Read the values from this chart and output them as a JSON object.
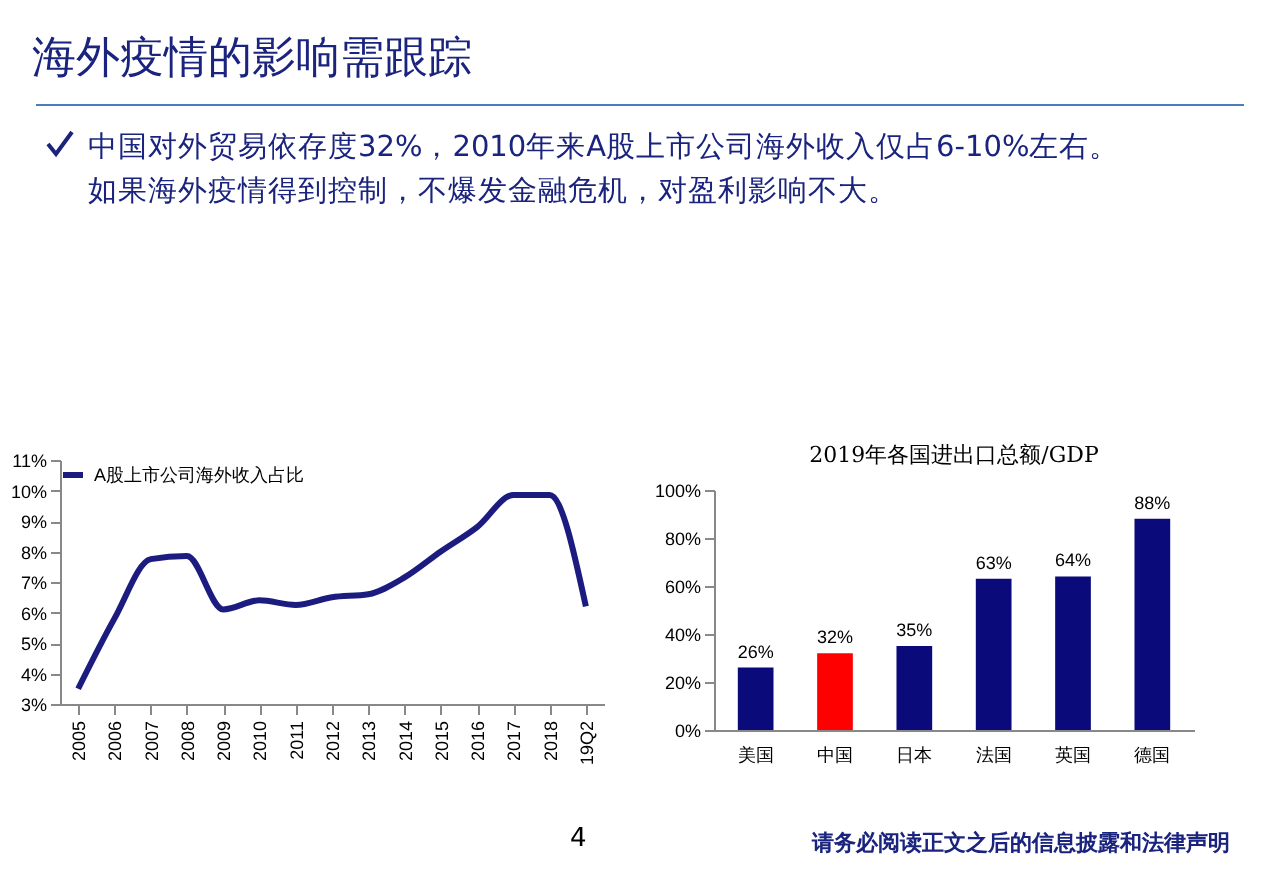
{
  "chart_data": [
    {
      "type": "other",
      "title": "海外疫情的影响需跟踪",
      "annotations": [
        "中国对外贸易依存度32%，2010年来A股上市公司海外收入仅占6-10%左右。",
        "如果海外疫情得到控制，不爆发金融危机，对盈利影响不大。",
        "4",
        "请务必阅读正文之后的信息披露和法律声明"
      ]
    },
    {
      "type": "line",
      "categories": [
        "2005",
        "2006",
        "2007",
        "2008",
        "2009",
        "2010",
        "2011",
        "2012",
        "2013",
        "2014",
        "2015",
        "2016",
        "2017",
        "2018",
        "19Q2"
      ],
      "series": [
        {
          "name": "A股上市公司海外收入占比",
          "color": "#1c1c80",
          "values": [
            3.5,
            5.8,
            7.75,
            7.85,
            6.1,
            6.4,
            6.25,
            6.5,
            6.6,
            7.15,
            8.0,
            8.8,
            9.85,
            9.85,
            6.2
          ]
        }
      ],
      "ylim": [
        3,
        11
      ],
      "yticks": [
        {
          "value": 3,
          "label": "3%"
        },
        {
          "value": 4,
          "label": "4%"
        },
        {
          "value": 5,
          "label": "5%"
        },
        {
          "value": 6,
          "label": "6%"
        },
        {
          "value": 7,
          "label": "7%"
        },
        {
          "value": 8,
          "label": "8%"
        },
        {
          "value": 9,
          "label": "9%"
        },
        {
          "value": 10,
          "label": "10%"
        },
        {
          "value": 11,
          "label": "11%"
        }
      ],
      "legend": "top",
      "grid": false
    },
    {
      "type": "bar",
      "title": "2019年各国进出口总额/GDP",
      "categories": [
        "美国",
        "中国",
        "日本",
        "法国",
        "英国",
        "德国"
      ],
      "values": [
        26,
        32,
        35,
        63,
        64,
        88
      ],
      "colors": [
        "#0a0a7a",
        "#ff0000",
        "#0a0a7a",
        "#0a0a7a",
        "#0a0a7a",
        "#0a0a7a"
      ],
      "value_labels": [
        "26%",
        "32%",
        "35%",
        "63%",
        "64%",
        "88%"
      ],
      "ylim": [
        0,
        100
      ],
      "yticks": [
        {
          "value": 0,
          "label": "0%"
        },
        {
          "value": 20,
          "label": "20%"
        },
        {
          "value": 40,
          "label": "40%"
        },
        {
          "value": 60,
          "label": "60%"
        },
        {
          "value": 80,
          "label": "80%"
        },
        {
          "value": 100,
          "label": "100%"
        }
      ],
      "grid": false
    }
  ]
}
